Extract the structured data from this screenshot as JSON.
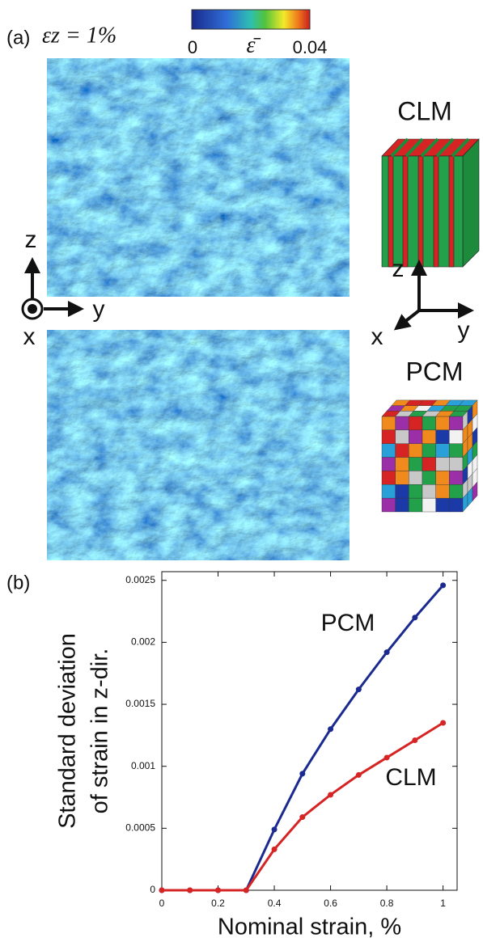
{
  "figure_a": {
    "panel_label": "(a)",
    "strain_label": "εz = 1%",
    "colorbar": {
      "min": 0,
      "max": 0.04,
      "label": "ε̄"
    },
    "axes_left": {
      "z": "z",
      "y": "y",
      "x": "x"
    },
    "models": {
      "top": "CLM",
      "bottom": "PCM"
    },
    "axes_right": {
      "z": "z",
      "y": "y",
      "x": "x"
    }
  },
  "chart_data": {
    "type": "line",
    "panel_label": "(b)",
    "xlabel": "Nominal strain, %",
    "ylabel": [
      "Standard deviation",
      "of strain in z-dir."
    ],
    "x": [
      0,
      0.1,
      0.2,
      0.3,
      0.4,
      0.5,
      0.6,
      0.7,
      0.8,
      0.9,
      1
    ],
    "series": [
      {
        "name": "PCM",
        "color": "#1b2a8e",
        "values": [
          0,
          0,
          0,
          0,
          0.00049,
          0.00094,
          0.0013,
          0.00162,
          0.00192,
          0.0022,
          0.00246
        ]
      },
      {
        "name": "CLM",
        "color": "#d62424",
        "values": [
          0,
          0,
          0,
          0,
          0.00033,
          0.00059,
          0.00077,
          0.00093,
          0.00107,
          0.00121,
          0.00135
        ]
      }
    ],
    "xlim": [
      0,
      1.05
    ],
    "ylim": [
      0,
      0.00257
    ],
    "xticks": [
      0,
      0.2,
      0.4,
      0.6,
      0.8,
      1
    ],
    "yticks": [
      0,
      0.0005,
      0.001,
      0.0015,
      0.002,
      0.0025
    ]
  }
}
